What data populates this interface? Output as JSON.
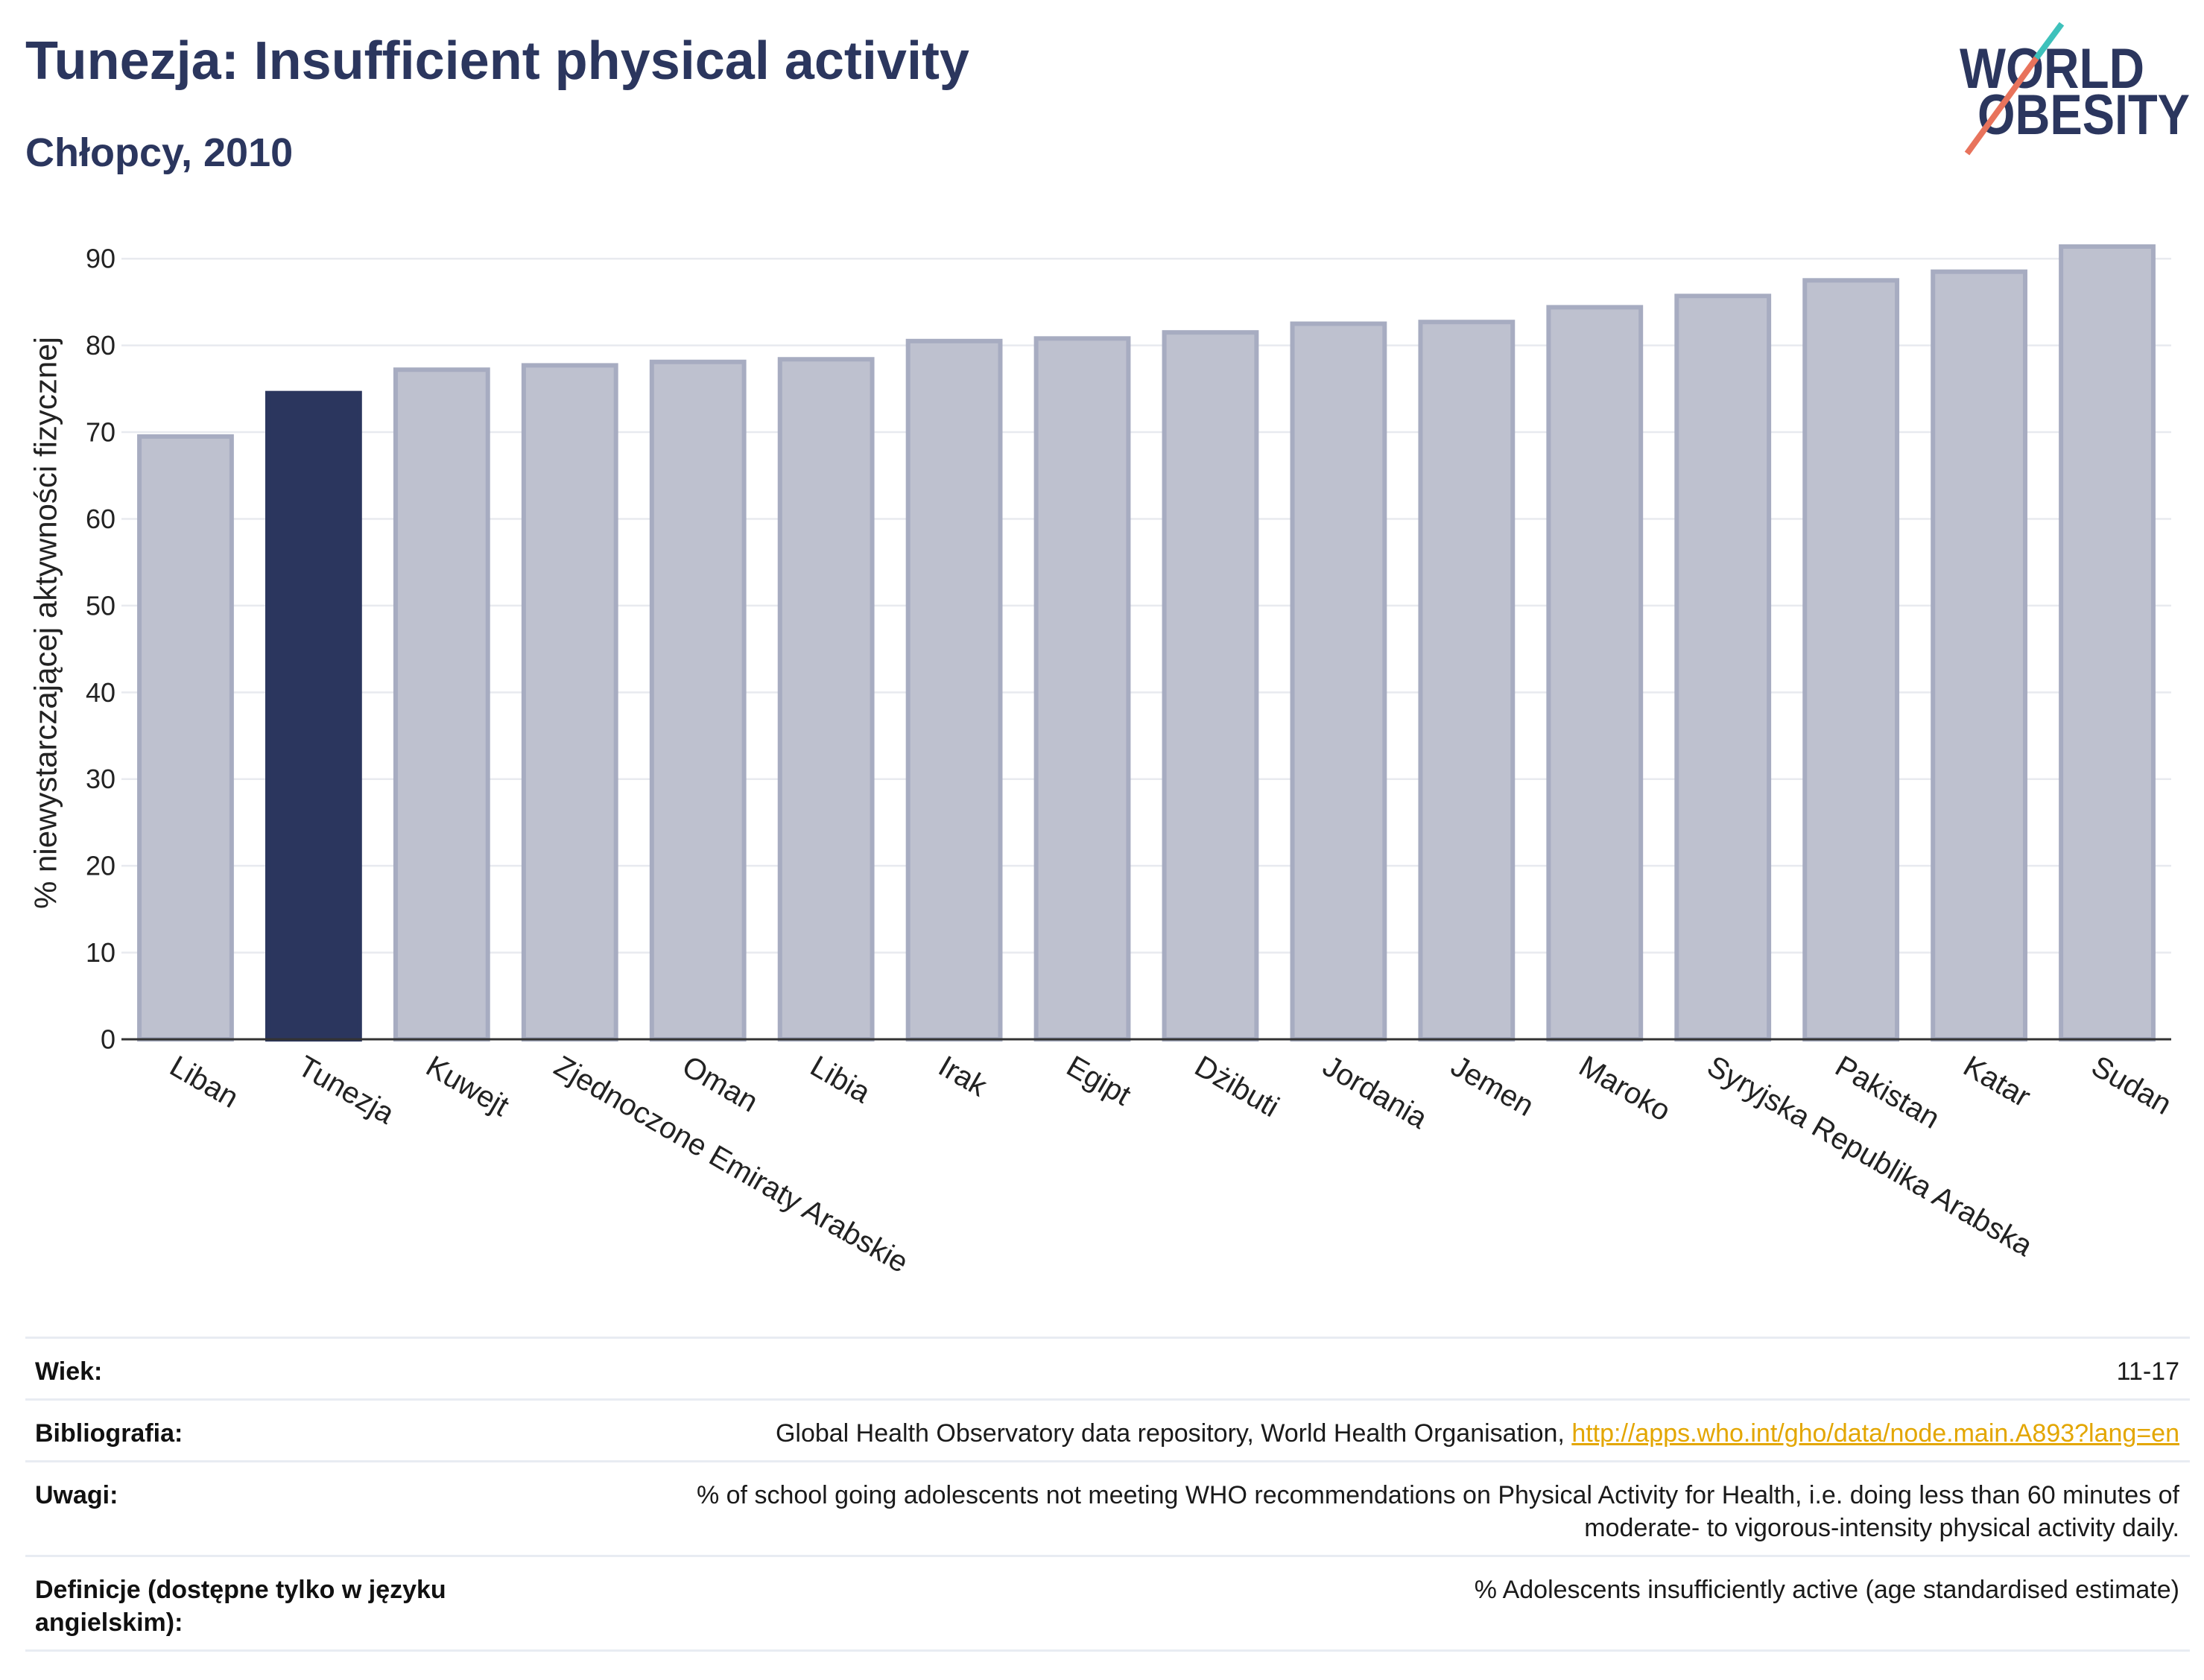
{
  "colors": {
    "title": "#2b365e",
    "highlight": "#2b365e",
    "bar": "#bec1cf",
    "bar_border": "#a7acc1",
    "grid": "#e8eaef",
    "axis": "#333333",
    "link": "#e3a600",
    "logo_text": "#2b365e",
    "logo_slash_top": "#3ec1bb",
    "logo_slash_bottom": "#e8735c"
  },
  "logo": {
    "line1": "WORLD",
    "line2": "OBESITY"
  },
  "chart_data": {
    "type": "bar",
    "title": "Tunezja: Insufficient physical activity",
    "subtitle": "Chłopcy, 2010",
    "ylabel": "% niewystarczającej aktywności fizycznej",
    "categories": [
      "Liban",
      "Tunezja",
      "Kuwejt",
      "Zjednoczone Emiraty Arabskie",
      "Oman",
      "Libia",
      "Irak",
      "Egipt",
      "Dżibuti",
      "Jordania",
      "Jemen",
      "Maroko",
      "Syryjska Republika Arabska",
      "Pakistan",
      "Katar",
      "Sudan"
    ],
    "values": [
      69.5,
      74.5,
      77.2,
      77.7,
      78.1,
      78.4,
      80.5,
      80.8,
      81.5,
      82.5,
      82.7,
      84.4,
      85.7,
      87.5,
      88.5,
      91.4
    ],
    "highlight_index": 1,
    "ylim": [
      0,
      95
    ],
    "yticks": [
      0,
      10,
      20,
      30,
      40,
      50,
      60,
      70,
      80,
      90
    ],
    "grid": true
  },
  "table": {
    "rows": [
      {
        "label": "Wiek:",
        "value": "11-17"
      },
      {
        "label": "Bibliografia:",
        "value": "Global Health Observatory data repository, World Health Organisation,",
        "link": "http://apps.who.int/gho/data/node.main.A893?lang=en"
      },
      {
        "label": "Uwagi:",
        "value": "% of school going adolescents not meeting WHO recommendations on Physical Activity for Health, i.e. doing less than 60 minutes of moderate- to vigorous-intensity physical activity daily."
      },
      {
        "label": "Definicje (dostępne tylko w języku angielskim):",
        "value": "% Adolescents insufficiently active (age standardised estimate)"
      }
    ]
  }
}
